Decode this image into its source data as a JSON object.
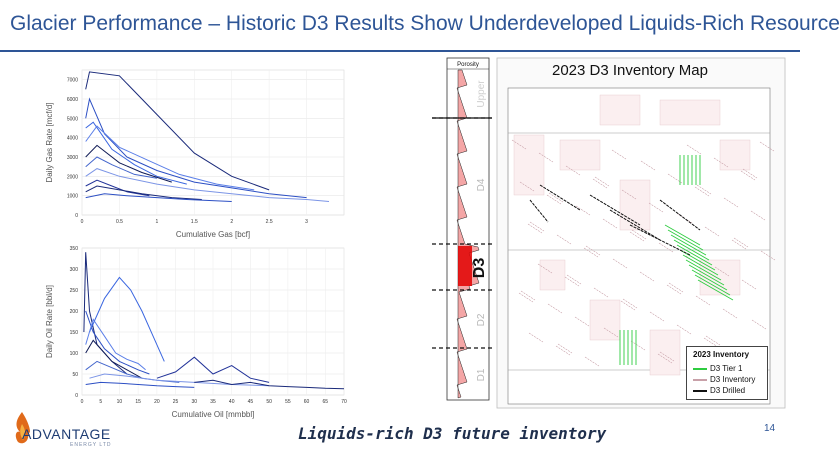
{
  "header": {
    "title": "Glacier Performance – Historic D3 Results Show Underdeveloped Liquids-Rich Resource"
  },
  "footer": {
    "caption": "Liquids-rich D3 future inventory",
    "page_number": "14",
    "logo_text": "ADVANTAGE",
    "logo_sub": "ENERGY LTD"
  },
  "colors": {
    "accent": "#2e5596",
    "series": [
      "#1a2a7a",
      "#2c4fc4",
      "#3a66e0",
      "#5b7fe8",
      "#0f1a55",
      "#4466cc",
      "#7c95e6",
      "#223399"
    ],
    "tier1": "#2ecc40",
    "inventory": "#c8a0a8",
    "drilled": "#111111",
    "porosity_fill": "#f4a6a6",
    "d3_highlight": "#e00000"
  },
  "chart_data": [
    {
      "type": "line",
      "title": "",
      "xlabel": "Cumulative Gas [bcf]",
      "ylabel": "Daily Gas Rate [mcf/d]",
      "xlim": [
        0,
        3.5
      ],
      "ylim": [
        0,
        7500
      ],
      "x_ticks": [
        "0",
        "0.5",
        "1",
        "1.5",
        "2",
        "2.5",
        "3"
      ],
      "x_tick_values": [
        0,
        0.5,
        1,
        1.5,
        2,
        2.5,
        3
      ],
      "y_ticks": [
        "0",
        "1000",
        "2000",
        "3000",
        "4000",
        "5000",
        "6000",
        "7000"
      ],
      "y_tick_values": [
        0,
        1000,
        2000,
        3000,
        4000,
        5000,
        6000,
        7000
      ],
      "grid": true,
      "series": [
        {
          "x": [
            0.05,
            0.1,
            0.5,
            1.0,
            1.5,
            2.0,
            2.5
          ],
          "y": [
            6500,
            7400,
            7200,
            5200,
            3200,
            2000,
            1300
          ]
        },
        {
          "x": [
            0.05,
            0.1,
            0.3,
            0.6,
            1.0,
            1.5,
            2.0,
            2.5,
            3.0
          ],
          "y": [
            5000,
            6000,
            4200,
            3000,
            2300,
            1700,
            1400,
            1100,
            900
          ]
        },
        {
          "x": [
            0.05,
            0.15,
            0.4,
            0.7,
            1.0,
            1.4
          ],
          "y": [
            4500,
            4800,
            3400,
            2600,
            2000,
            1600
          ]
        },
        {
          "x": [
            0.05,
            0.2,
            0.5,
            0.9,
            1.3,
            1.8,
            2.3
          ],
          "y": [
            3800,
            4600,
            3500,
            2800,
            2100,
            1600,
            1300
          ]
        },
        {
          "x": [
            0.05,
            0.2,
            0.5,
            0.8,
            1.2
          ],
          "y": [
            3000,
            3600,
            2700,
            2200,
            1700
          ]
        },
        {
          "x": [
            0.05,
            0.2,
            0.4,
            0.7,
            1.0
          ],
          "y": [
            2500,
            3000,
            2600,
            2100,
            1900
          ]
        },
        {
          "x": [
            0.05,
            0.2,
            0.5,
            1.0,
            1.5,
            2.0,
            2.5,
            3.0,
            3.3
          ],
          "y": [
            2000,
            2400,
            2000,
            1600,
            1300,
            1100,
            900,
            800,
            700
          ]
        },
        {
          "x": [
            0.05,
            0.2,
            0.4,
            0.6,
            0.9
          ],
          "y": [
            1500,
            1800,
            1500,
            1200,
            1000
          ]
        },
        {
          "x": [
            0.05,
            0.2,
            0.5,
            0.8,
            1.2,
            1.6
          ],
          "y": [
            1200,
            1500,
            1300,
            1100,
            900,
            800
          ]
        },
        {
          "x": [
            0.05,
            0.3,
            0.6,
            1.0,
            1.4,
            2.0
          ],
          "y": [
            900,
            1100,
            1000,
            900,
            800,
            700
          ]
        }
      ]
    },
    {
      "type": "line",
      "title": "",
      "xlabel": "Cumulative Oil [mmbbl]",
      "ylabel": "Daily Oil Rate [bbl/d]",
      "xlim": [
        0,
        70
      ],
      "ylim": [
        0,
        350
      ],
      "x_ticks": [
        "0",
        "5",
        "10",
        "15",
        "20",
        "25",
        "30",
        "35",
        "40",
        "45",
        "50",
        "55",
        "60",
        "65",
        "70"
      ],
      "x_tick_values": [
        0,
        5,
        10,
        15,
        20,
        25,
        30,
        35,
        40,
        45,
        50,
        55,
        60,
        65,
        70
      ],
      "y_ticks": [
        "0",
        "50",
        "100",
        "150",
        "200",
        "250",
        "300",
        "350"
      ],
      "y_tick_values": [
        0,
        50,
        100,
        150,
        200,
        250,
        300,
        350
      ],
      "grid": true,
      "series": [
        {
          "x": [
            0.5,
            1,
            2,
            4,
            8,
            12
          ],
          "y": [
            150,
            340,
            200,
            120,
            80,
            50
          ]
        },
        {
          "x": [
            1,
            3,
            6,
            10,
            15,
            18
          ],
          "y": [
            200,
            150,
            110,
            80,
            60,
            50
          ]
        },
        {
          "x": [
            2,
            6,
            10,
            13,
            16,
            19,
            22
          ],
          "y": [
            150,
            230,
            280,
            250,
            200,
            140,
            80
          ]
        },
        {
          "x": [
            1,
            3,
            6,
            9,
            12,
            15,
            17
          ],
          "y": [
            120,
            180,
            140,
            100,
            85,
            75,
            60
          ]
        },
        {
          "x": [
            1,
            3,
            5,
            8,
            12,
            16
          ],
          "y": [
            100,
            130,
            110,
            80,
            60,
            40
          ]
        },
        {
          "x": [
            1,
            4,
            8,
            12,
            16,
            20,
            26
          ],
          "y": [
            60,
            80,
            65,
            50,
            40,
            35,
            30
          ]
        },
        {
          "x": [
            2,
            6,
            12,
            20,
            30,
            40,
            50
          ],
          "y": [
            40,
            50,
            45,
            35,
            30,
            25,
            22
          ]
        },
        {
          "x": [
            20,
            25,
            30,
            35,
            40,
            45,
            50
          ],
          "y": [
            40,
            55,
            90,
            50,
            70,
            40,
            30
          ]
        },
        {
          "x": [
            30,
            35,
            40,
            45,
            50,
            55,
            60,
            65,
            70
          ],
          "y": [
            30,
            35,
            25,
            30,
            22,
            20,
            18,
            16,
            15
          ]
        },
        {
          "x": [
            1,
            5,
            10,
            15,
            20,
            25,
            30
          ],
          "y": [
            25,
            30,
            28,
            25,
            22,
            20,
            18
          ]
        }
      ]
    }
  ],
  "log": {
    "header": "Porosity",
    "zones": [
      {
        "label": "Upper"
      },
      {
        "label": "D4"
      },
      {
        "label": "D3"
      },
      {
        "label": "D2"
      },
      {
        "label": "D1"
      }
    ]
  },
  "map": {
    "title": "2023 D3 Inventory Map",
    "legend": {
      "title": "2023 Inventory",
      "items": [
        {
          "label": "D3 Tier 1",
          "color": "#2ecc40"
        },
        {
          "label": "D3 Inventory",
          "color": "#c8a0a8"
        },
        {
          "label": "D3 Drilled",
          "color": "#111111"
        }
      ]
    }
  }
}
